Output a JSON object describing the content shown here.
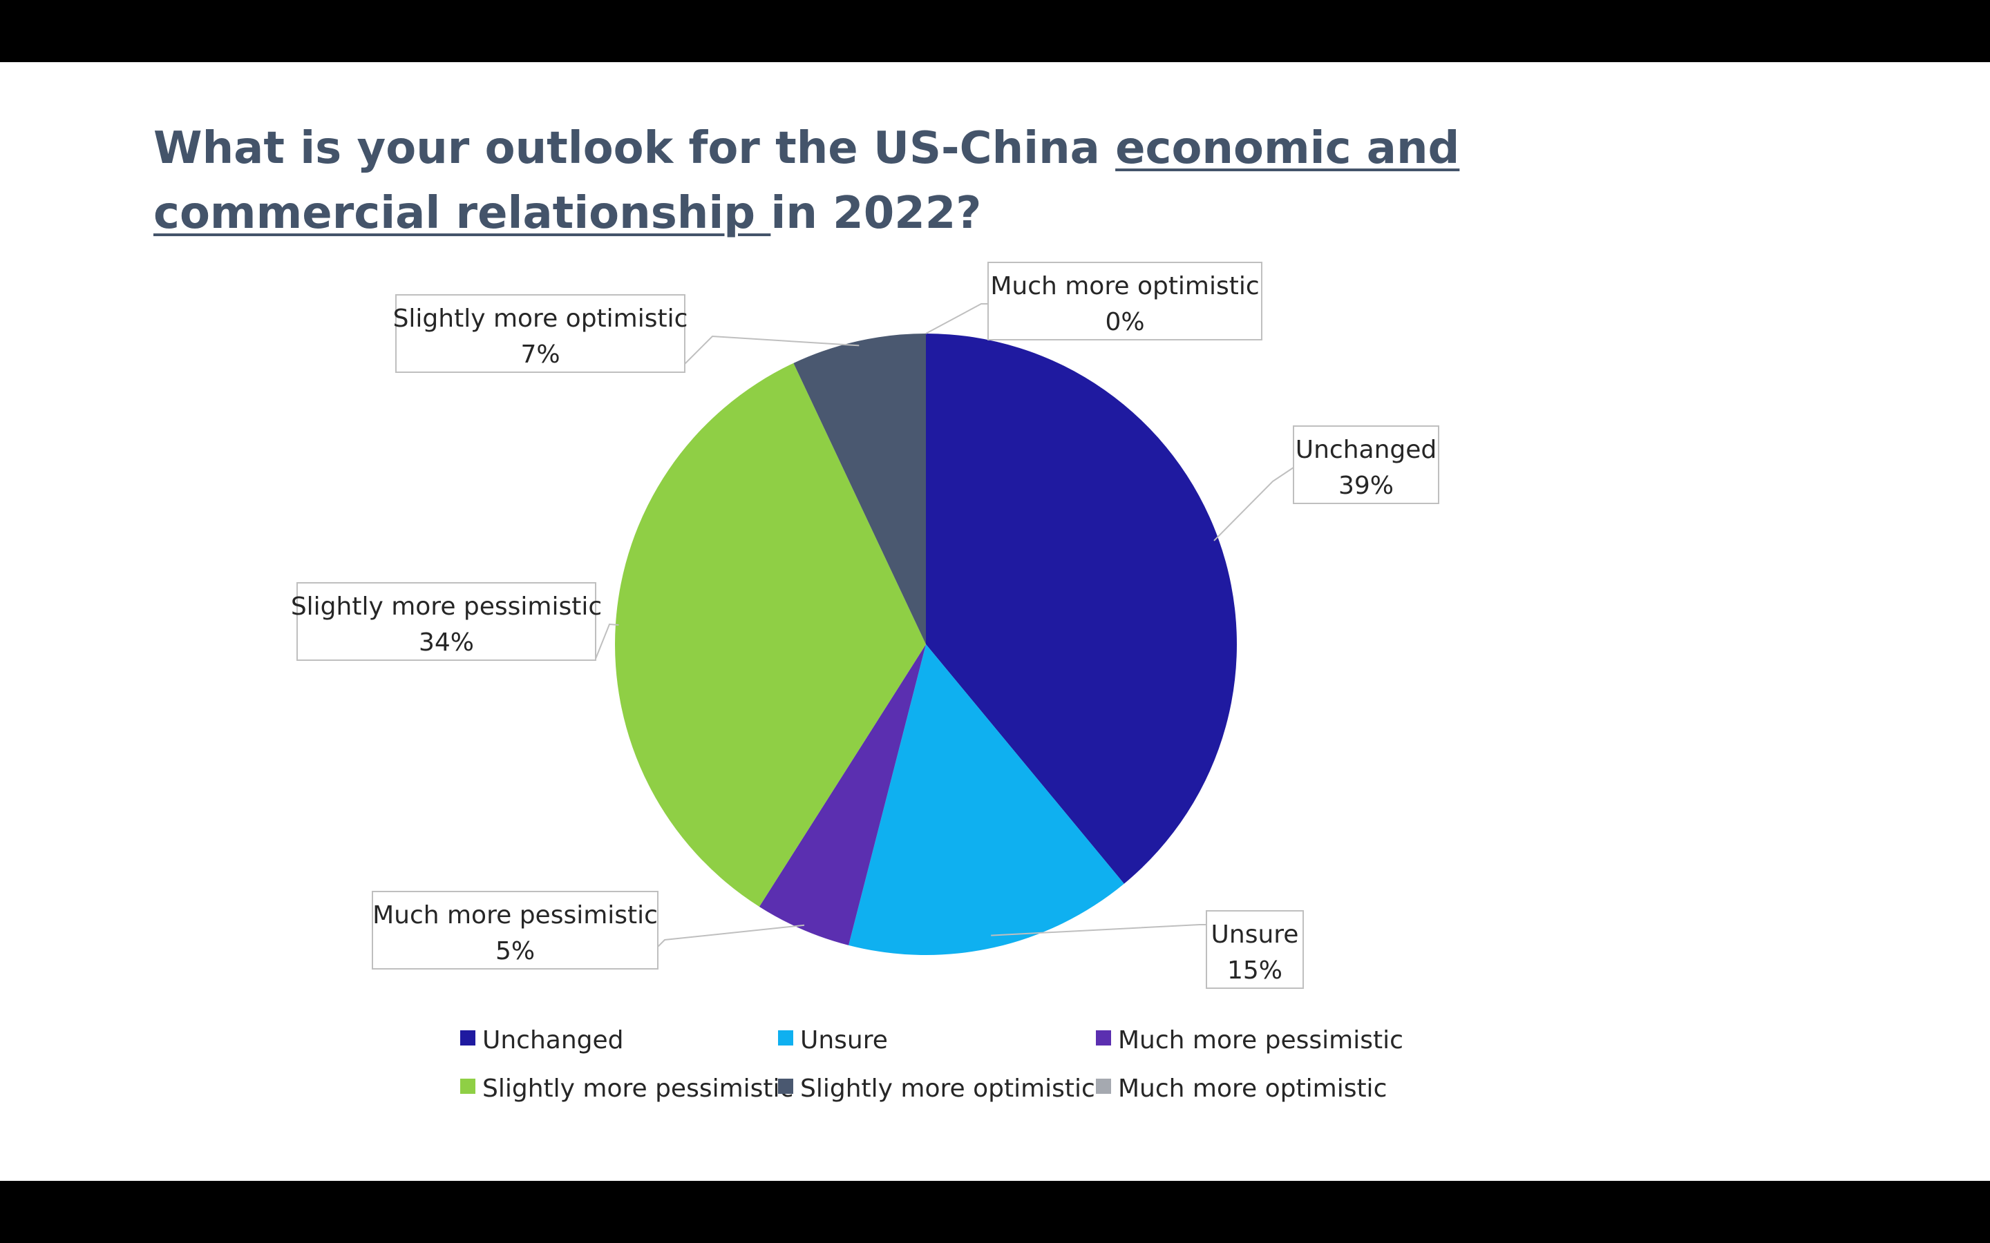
{
  "chart_data": {
    "type": "pie",
    "title_parts": [
      {
        "text": "What is your outlook for the US-China ",
        "underline": false
      },
      {
        "text": "economic and commercial relationship ",
        "underline": true
      },
      {
        "text": "in 2022?",
        "underline": false
      }
    ],
    "slices": [
      {
        "name": "Unchanged",
        "value": 39,
        "label": "39%",
        "color": "#1f1aa0"
      },
      {
        "name": "Unsure",
        "value": 15,
        "label": "15%",
        "color": "#0fb0f0"
      },
      {
        "name": "Much more pessimistic",
        "value": 5,
        "label": "5%",
        "color": "#5b2fb0"
      },
      {
        "name": "Slightly more pessimistic",
        "value": 34,
        "label": "34%",
        "color": "#8fcf45"
      },
      {
        "name": "Slightly more optimistic",
        "value": 7,
        "label": "7%",
        "color": "#4a5870"
      },
      {
        "name": "Much more optimistic",
        "value": 0,
        "label": "0%",
        "color": "#a5a9b0"
      }
    ],
    "legend_placement": "bottom"
  }
}
